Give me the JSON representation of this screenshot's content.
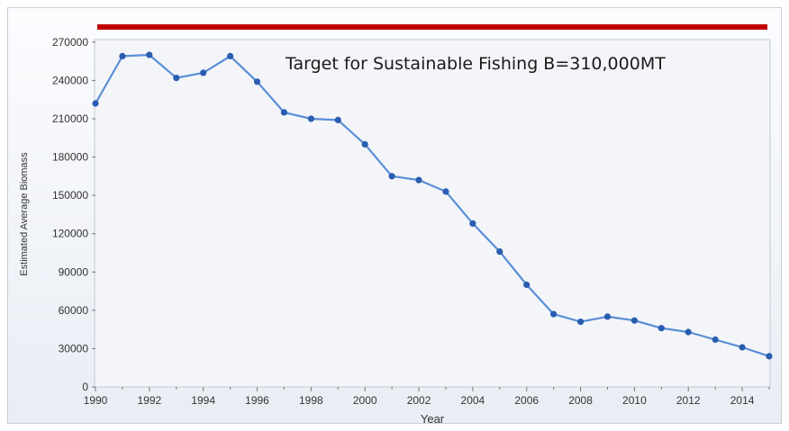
{
  "chart_data": {
    "type": "line",
    "title": "",
    "xlabel": "Year",
    "ylabel": "Estimated Average Biomass",
    "xlim": [
      1990,
      2015
    ],
    "ylim": [
      0,
      280000
    ],
    "x_ticks": [
      1990,
      1992,
      1994,
      1996,
      1998,
      2000,
      2002,
      2004,
      2006,
      2008,
      2010,
      2012,
      2014
    ],
    "y_ticks": [
      0,
      30000,
      60000,
      90000,
      120000,
      150000,
      180000,
      210000,
      240000,
      270000
    ],
    "x": [
      1990,
      1991,
      1992,
      1993,
      1994,
      1995,
      1996,
      1997,
      1998,
      1999,
      2000,
      2001,
      2002,
      2003,
      2004,
      2005,
      2006,
      2007,
      2008,
      2009,
      2010,
      2011,
      2012,
      2013,
      2014,
      2015
    ],
    "series": [
      {
        "values": [
          222000,
          259000,
          260000,
          242000,
          246000,
          259000,
          239000,
          215000,
          210000,
          209000,
          190000,
          165000,
          162000,
          153000,
          128000,
          106000,
          80000,
          57000,
          51000,
          55000,
          52000,
          46000,
          43000,
          37000,
          31000,
          24000
        ],
        "color": "#5a8ed6",
        "marker_color": "#2a5db0"
      }
    ],
    "grid": false,
    "annotations": [
      {
        "text": "Target for Sustainable Fishing  B=310,000MT",
        "line_value": 310000,
        "line_color": "#c00000"
      }
    ]
  }
}
